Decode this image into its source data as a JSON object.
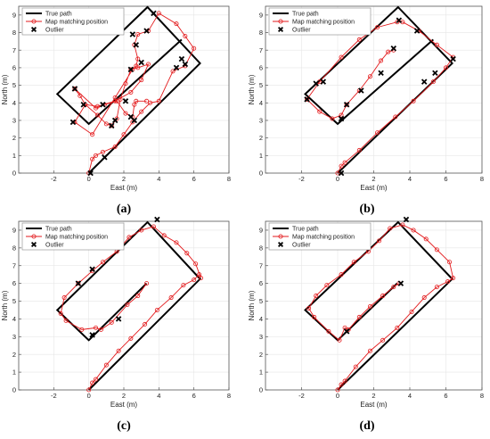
{
  "colors": {
    "true_path": "#000000",
    "matching": "#e31a1c",
    "outlier": "#000000"
  },
  "legend": {
    "true_path": "True path",
    "matching": "Map matching position",
    "outlier": "Outlier"
  },
  "chart_data": [
    {
      "type": "line",
      "panel_label": "(a)",
      "xlabel": "East (m)",
      "ylabel": "North (m)",
      "xlim": [
        -4,
        8
      ],
      "ylim": [
        0,
        9.5
      ],
      "xticks": [
        -2,
        0,
        2,
        4,
        6,
        8
      ],
      "yticks": [
        0,
        1,
        2,
        3,
        4,
        5,
        6,
        7,
        8,
        9
      ],
      "series": [
        {
          "name": "True path",
          "x": [
            0,
            6.35,
            3.35,
            -1.8,
            0.0,
            5.3
          ],
          "y": [
            0,
            6.25,
            9.45,
            4.5,
            2.8,
            7.6
          ]
        },
        {
          "name": "Map matching position",
          "x": [
            0,
            0.2,
            0.4,
            0.8,
            1.5,
            2.0,
            2.5,
            3.0,
            3.5,
            4.0,
            4.8,
            5.5,
            6.0,
            5.5,
            5.0,
            4.0,
            3.4,
            2.8,
            2.6,
            2.8,
            2.7,
            2.5,
            1.5,
            0.2,
            -0.8,
            -0.2,
            0.5,
            1.5,
            2.4,
            3.0,
            3.4,
            2.8,
            2.4,
            2.1,
            1.8,
            1.6,
            1.3,
            1.0,
            0.5,
            -0.2,
            -0.5,
            -0.8,
            0.4,
            0.9,
            1.6,
            2.1,
            2.5,
            2.6,
            2.7,
            3.3
          ],
          "y": [
            0,
            0.8,
            1.0,
            1.2,
            1.5,
            2.2,
            2.9,
            3.5,
            4.0,
            4.1,
            5.8,
            6.1,
            7.1,
            7.8,
            8.5,
            9.1,
            8.1,
            7.9,
            7.3,
            6.5,
            6.1,
            5.9,
            4.3,
            2.2,
            2.9,
            3.9,
            3.8,
            4.1,
            4.6,
            5.3,
            6.2,
            6.0,
            5.9,
            5.1,
            4.2,
            3.1,
            2.7,
            2.8,
            3.3,
            3.9,
            4.4,
            4.8,
            3.7,
            3.9,
            4.1,
            3.4,
            3.2,
            3.9,
            4.1,
            4.1
          ]
        },
        {
          "name": "Outlier",
          "x": [
            -0.8,
            0.8,
            -0.3,
            -0.9,
            2.1,
            2.4,
            1.3,
            2.6,
            2.4,
            2.7,
            3.3,
            3.7,
            5.0,
            5.5,
            5.3,
            2.5,
            3.0,
            1.5,
            0.9,
            0.1
          ],
          "y": [
            4.8,
            3.9,
            3.9,
            2.9,
            4.1,
            3.2,
            2.7,
            3.0,
            5.9,
            7.3,
            8.1,
            9.1,
            6.0,
            6.2,
            6.5,
            7.9,
            6.3,
            3.0,
            0.9,
            0.0
          ]
        }
      ]
    },
    {
      "type": "line",
      "panel_label": "(b)",
      "xlabel": "East (m)",
      "ylabel": "North (m)",
      "xlim": [
        -4,
        8
      ],
      "ylim": [
        0,
        9.5
      ],
      "xticks": [
        -2,
        0,
        2,
        4,
        6,
        8
      ],
      "yticks": [
        0,
        1,
        2,
        3,
        4,
        5,
        6,
        7,
        8,
        9
      ],
      "series": [
        {
          "name": "True path",
          "x": [
            0,
            6.35,
            3.35,
            -1.8,
            0.0,
            5.3
          ],
          "y": [
            0,
            6.25,
            9.45,
            4.5,
            2.8,
            7.6
          ]
        },
        {
          "name": "Map matching position",
          "x": [
            0,
            0.2,
            0.4,
            1.2,
            2.2,
            3.2,
            4.2,
            5.3,
            6.0,
            6.4,
            5.5,
            4.5,
            3.6,
            3.3,
            2.2,
            1.2,
            0.2,
            -1.0,
            -1.7,
            -1.0,
            -0.3,
            0.2,
            0.5,
            1.2,
            1.8,
            2.4,
            2.8,
            3.1
          ],
          "y": [
            0,
            0.4,
            0.6,
            1.3,
            2.3,
            3.2,
            4.1,
            5.2,
            6.0,
            6.6,
            7.3,
            8.1,
            8.6,
            8.6,
            8.3,
            7.6,
            6.6,
            5.2,
            4.2,
            3.5,
            3.1,
            3.3,
            3.9,
            4.7,
            5.5,
            6.4,
            6.9,
            7.0
          ]
        },
        {
          "name": "Outlier",
          "x": [
            -1.2,
            -0.8,
            -1.7,
            0.2,
            0.5,
            1.3,
            2.4,
            3.1,
            3.4,
            4.4,
            6.4,
            5.4,
            4.8,
            0.2
          ],
          "y": [
            5.1,
            5.2,
            4.2,
            3.1,
            3.9,
            4.7,
            5.7,
            7.1,
            8.7,
            8.1,
            6.5,
            5.7,
            5.2,
            0.0
          ]
        }
      ]
    },
    {
      "type": "line",
      "panel_label": "(c)",
      "xlabel": "East (m)",
      "ylabel": "North (m)",
      "xlim": [
        -4,
        8
      ],
      "ylim": [
        0,
        9.5
      ],
      "xticks": [
        -2,
        0,
        2,
        4,
        6,
        8
      ],
      "yticks": [
        0,
        1,
        2,
        3,
        4,
        5,
        6,
        7,
        8,
        9
      ],
      "series": [
        {
          "name": "True path",
          "x": [
            0,
            6.35,
            3.35,
            -1.8,
            0.0,
            3.3
          ],
          "y": [
            0,
            6.25,
            9.45,
            4.5,
            2.8,
            6.0
          ]
        },
        {
          "name": "Map matching position",
          "x": [
            0,
            0.2,
            0.4,
            1.0,
            1.7,
            2.4,
            3.2,
            3.9,
            4.7,
            5.4,
            6.0,
            6.3,
            6.4,
            6.1,
            5.6,
            5.0,
            4.3,
            3.7,
            3.0,
            2.3,
            1.6,
            0.8,
            0.2,
            -0.6,
            -1.4,
            -1.6,
            -1.3,
            -0.4,
            0.4,
            0.7,
            1.3,
            2.2,
            2.8,
            3.3
          ],
          "y": [
            0,
            0.4,
            0.6,
            1.4,
            2.2,
            2.9,
            3.7,
            4.5,
            5.2,
            5.9,
            6.2,
            6.5,
            6.3,
            7.1,
            7.7,
            8.3,
            8.7,
            9.2,
            9.0,
            8.6,
            7.8,
            7.2,
            6.7,
            6.0,
            5.2,
            4.3,
            3.9,
            3.4,
            3.5,
            3.4,
            3.8,
            4.8,
            5.3,
            6.0
          ]
        },
        {
          "name": "Outlier",
          "x": [
            -0.6,
            0.2,
            3.9,
            1.7,
            0.2
          ],
          "y": [
            6.0,
            6.8,
            9.6,
            4.0,
            3.1
          ]
        }
      ]
    },
    {
      "type": "line",
      "panel_label": "(d)",
      "xlabel": "East (m)",
      "ylabel": "North (m)",
      "xlim": [
        -4,
        8
      ],
      "ylim": [
        0,
        9.5
      ],
      "xticks": [
        -2,
        0,
        2,
        4,
        6,
        8
      ],
      "yticks": [
        0,
        1,
        2,
        3,
        4,
        5,
        6,
        7,
        8,
        9
      ],
      "series": [
        {
          "name": "True path",
          "x": [
            0,
            6.35,
            3.35,
            -1.8,
            0.0,
            3.3
          ],
          "y": [
            0,
            6.25,
            9.45,
            4.5,
            2.8,
            6.0
          ]
        },
        {
          "name": "Map matching position",
          "x": [
            0,
            0.2,
            0.4,
            1.0,
            1.8,
            2.5,
            3.3,
            4.1,
            4.8,
            5.5,
            6.1,
            6.4,
            6.2,
            5.5,
            4.9,
            4.2,
            3.6,
            2.9,
            2.3,
            1.7,
            0.9,
            0.2,
            -0.6,
            -1.2,
            -1.6,
            -1.3,
            -0.5,
            0.1,
            0.4,
            0.6,
            1.2,
            1.8,
            2.5,
            3.1,
            3.4
          ],
          "y": [
            0,
            0.3,
            0.5,
            1.3,
            2.2,
            2.8,
            3.5,
            4.4,
            5.2,
            5.8,
            6.1,
            6.3,
            7.2,
            7.9,
            8.5,
            9.0,
            9.3,
            9.1,
            8.4,
            7.8,
            7.2,
            6.5,
            5.9,
            5.3,
            4.6,
            4.1,
            3.3,
            2.8,
            3.5,
            3.4,
            4.1,
            4.7,
            5.3,
            5.8,
            6.0
          ]
        },
        {
          "name": "Outlier",
          "x": [
            3.8,
            0.5,
            3.5
          ],
          "y": [
            9.6,
            3.3,
            6.0
          ]
        }
      ]
    }
  ]
}
